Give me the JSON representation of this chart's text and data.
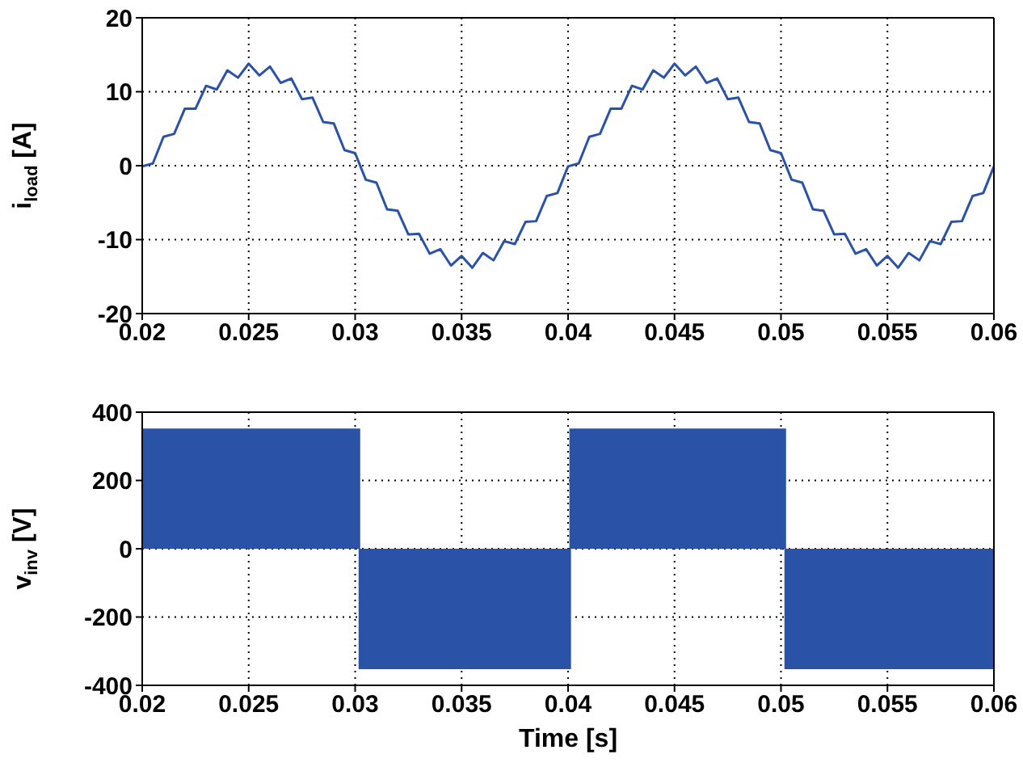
{
  "chart_data": [
    {
      "type": "line",
      "ylabel": "i$_{load}$ [A]",
      "color": "#2a52a6",
      "grid": true,
      "xlim": [
        0.02,
        0.06
      ],
      "xticks": [
        0.02,
        0.025,
        0.03,
        0.035,
        0.04,
        0.045,
        0.05,
        0.055,
        0.06
      ],
      "ylim": [
        -20,
        20
      ],
      "yticks": [
        -20,
        -10,
        0,
        10,
        20
      ],
      "x": [
        0.02,
        0.0205,
        0.021,
        0.0215,
        0.022,
        0.0225,
        0.023,
        0.0235,
        0.024,
        0.0245,
        0.025,
        0.0255,
        0.026,
        0.0265,
        0.027,
        0.0275,
        0.028,
        0.0285,
        0.029,
        0.0295,
        0.03,
        0.0305,
        0.031,
        0.0315,
        0.032,
        0.0325,
        0.033,
        0.0335,
        0.034,
        0.0345,
        0.035,
        0.0355,
        0.036,
        0.0365,
        0.037,
        0.0375,
        0.038,
        0.0385,
        0.039,
        0.0395,
        0.04,
        0.0405,
        0.041,
        0.0415,
        0.042,
        0.0425,
        0.043,
        0.0435,
        0.044,
        0.0445,
        0.045,
        0.0455,
        0.046,
        0.0465,
        0.047,
        0.0475,
        0.048,
        0.0485,
        0.049,
        0.0495,
        0.05,
        0.0505,
        0.051,
        0.0515,
        0.052,
        0.0525,
        0.053,
        0.0535,
        0.054,
        0.0545,
        0.055,
        0.0555,
        0.056,
        0.0565,
        0.057,
        0.0575,
        0.058,
        0.0585,
        0.059,
        0.0595,
        0.06
      ],
      "values": [
        -0.1,
        0.3,
        3.9,
        4.3,
        7.7,
        7.7,
        10.8,
        10.3,
        12.9,
        11.9,
        13.8,
        12.2,
        13.4,
        11.2,
        11.8,
        9.0,
        9.2,
        5.9,
        5.7,
        2.1,
        1.7,
        -1.9,
        -2.3,
        -5.9,
        -6.1,
        -9.3,
        -9.2,
        -11.9,
        -11.3,
        -13.5,
        -12.2,
        -13.8,
        -11.8,
        -12.8,
        -10.2,
        -10.6,
        -7.6,
        -7.5,
        -4.1,
        -3.7,
        -0.1,
        0.3,
        3.9,
        4.3,
        7.7,
        7.7,
        10.8,
        10.3,
        12.9,
        11.9,
        13.8,
        12.2,
        13.4,
        11.2,
        11.8,
        9.0,
        9.2,
        5.9,
        5.7,
        2.1,
        1.7,
        -1.9,
        -2.3,
        -5.9,
        -6.1,
        -9.3,
        -9.2,
        -11.9,
        -11.3,
        -13.5,
        -12.2,
        -13.8,
        -11.8,
        -12.8,
        -10.2,
        -10.6,
        -7.6,
        -7.5,
        -4.1,
        -3.7,
        -0.1
      ]
    },
    {
      "type": "area",
      "ylabel": "v$_{inv}$ [V]",
      "xlabel": "Time [s]",
      "color": "#2a52a6",
      "grid": true,
      "xlim": [
        0.02,
        0.06
      ],
      "xticks": [
        0.02,
        0.025,
        0.03,
        0.035,
        0.04,
        0.045,
        0.05,
        0.055,
        0.06
      ],
      "ylim": [
        -400,
        400
      ],
      "yticks": [
        -400,
        -200,
        0,
        200,
        400
      ],
      "x": [
        0.02,
        0.02,
        0.0302,
        0.0302,
        0.0401,
        0.0401,
        0.0502,
        0.0502,
        0.06
      ],
      "values": [
        0,
        350,
        350,
        -350,
        -350,
        350,
        350,
        -350,
        -350
      ]
    }
  ]
}
